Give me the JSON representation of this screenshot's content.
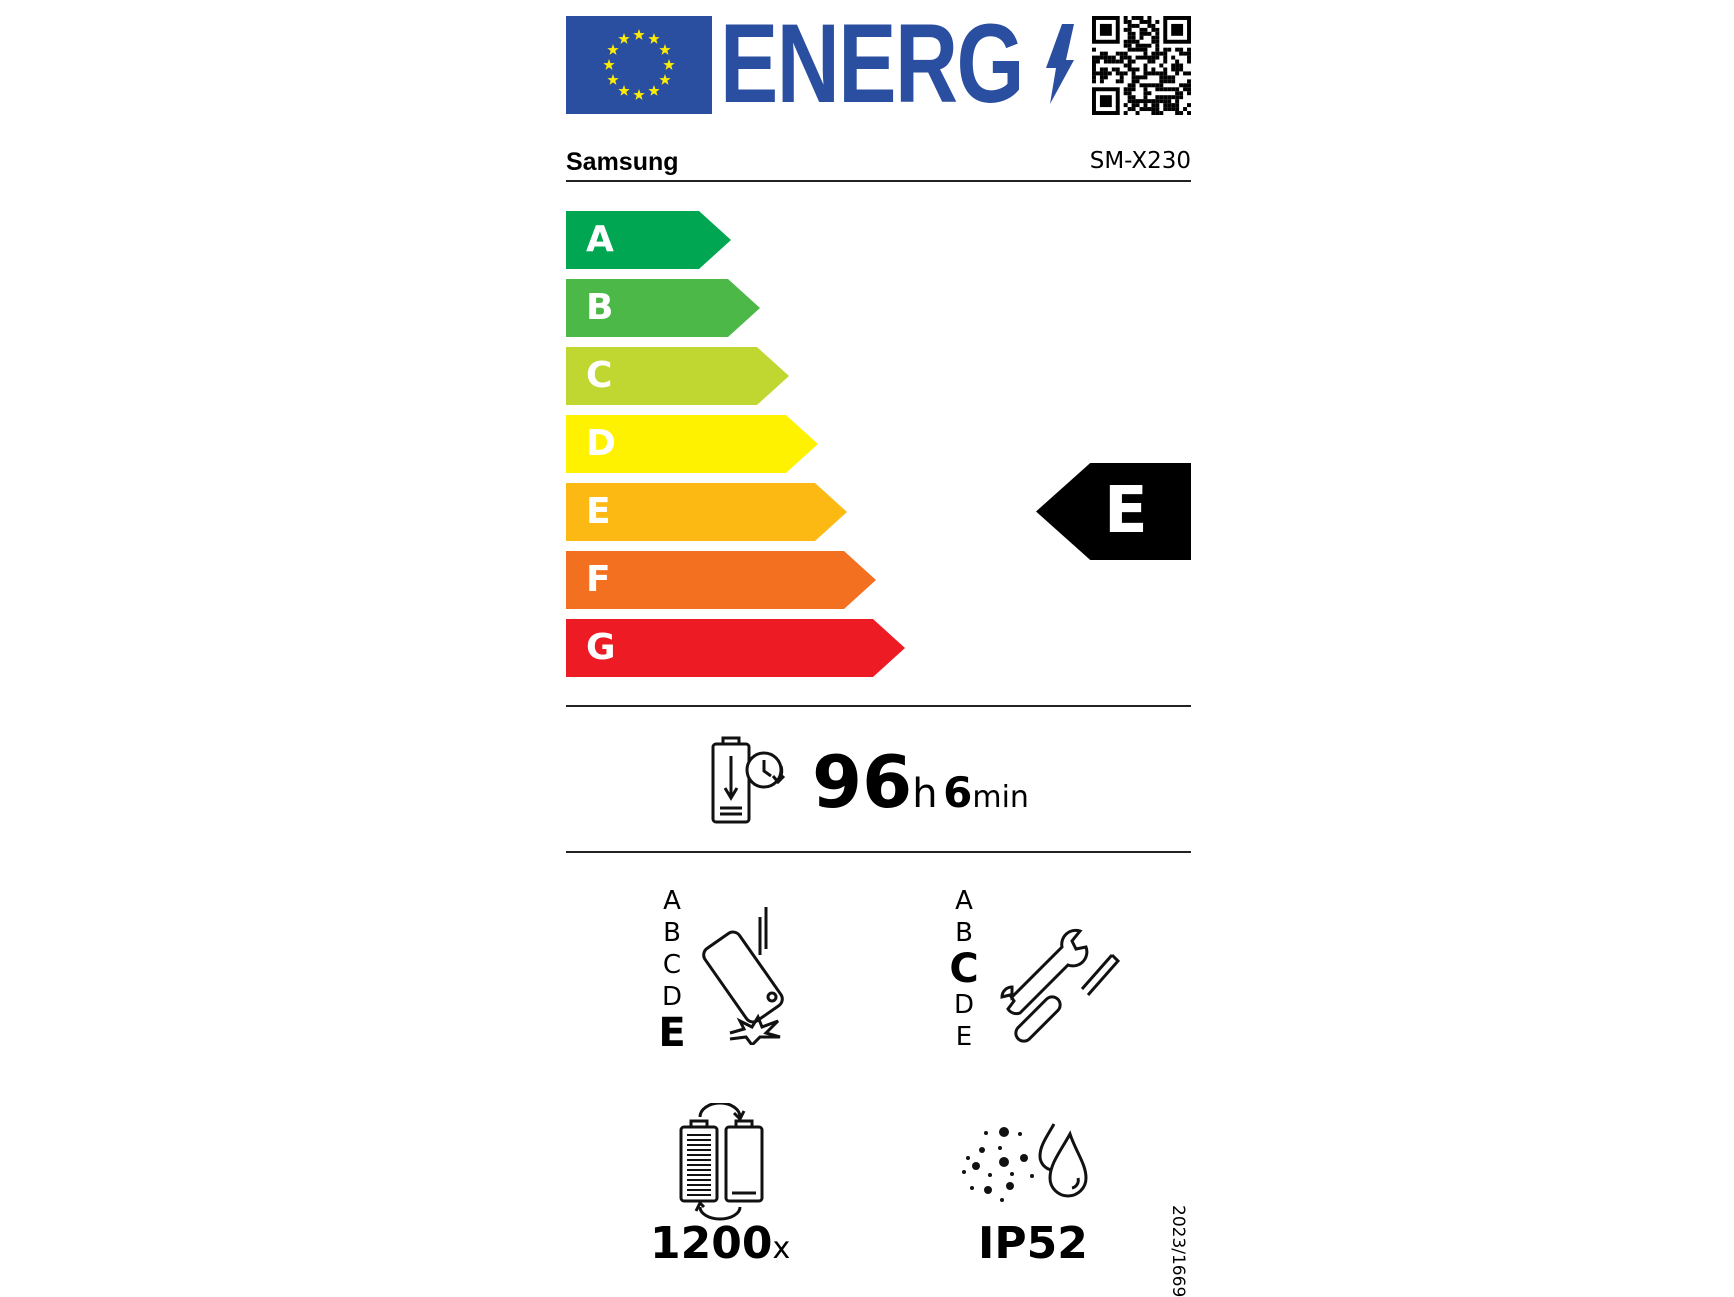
{
  "header": {
    "logo_text": "ENERG",
    "flag_name": "EU flag",
    "qr_name": "qr-code"
  },
  "supplier": "Samsung",
  "model": "SM-X230",
  "energy_scale": [
    {
      "label": "A",
      "color": "#00a651"
    },
    {
      "label": "B",
      "color": "#4cb847"
    },
    {
      "label": "C",
      "color": "#bfd730"
    },
    {
      "label": "D",
      "color": "#fff200"
    },
    {
      "label": "E",
      "color": "#fdb913"
    },
    {
      "label": "F",
      "color": "#f37021"
    },
    {
      "label": "G",
      "color": "#ed1c24"
    }
  ],
  "energy_class": "E",
  "battery_endurance": {
    "hours": "96",
    "hours_unit": "h",
    "minutes": "6",
    "minutes_unit": "min"
  },
  "drop_resistance": {
    "classes": [
      "A",
      "B",
      "C",
      "D",
      "E"
    ],
    "selected": "E"
  },
  "repairability": {
    "classes": [
      "A",
      "B",
      "C",
      "D",
      "E"
    ],
    "selected": "C"
  },
  "battery_cycles": {
    "value": "1200",
    "unit": "x"
  },
  "ingress_protection": "IP52",
  "regulation": "2023/1669"
}
